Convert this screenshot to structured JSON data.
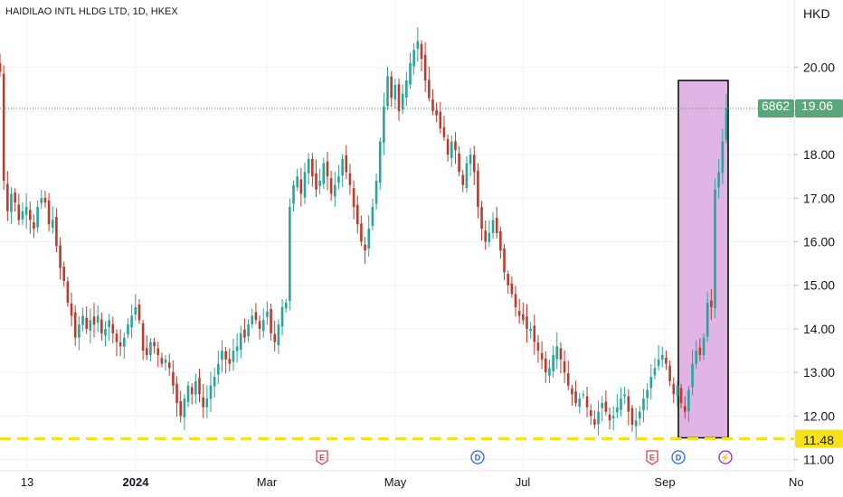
{
  "header": {
    "symbol_title": "HAIDILAO INTL HLDG LTD, 1D, HKEX"
  },
  "price_axis": {
    "currency": "HKD"
  },
  "last_price": {
    "volume_label": "6862",
    "price_label": "19.06",
    "value": 19.06
  },
  "support_line": {
    "label": "11.48",
    "value": 11.48,
    "color": "#f7e11a"
  },
  "colors": {
    "up": "#26a69a",
    "down": "#c0392b",
    "highlight_fill": "#e1b4e6",
    "badge": "#5aa67a"
  },
  "events": [
    {
      "letter": "E",
      "kind": "earnings",
      "date": "Mar-19",
      "color": "#e0434f"
    },
    {
      "letter": "D",
      "kind": "dividend",
      "date": "Jun-12",
      "color": "#2962ff"
    },
    {
      "letter": "E",
      "kind": "earnings",
      "date": "Aug-27",
      "color": "#e0434f"
    },
    {
      "letter": "D",
      "kind": "dividend",
      "date": "Sep-05",
      "color": "#2962ff"
    },
    {
      "letter": "⚡",
      "kind": "split",
      "date": "Sep-26",
      "color": "#9c27b0"
    }
  ],
  "chart_data": {
    "type": "candlestick",
    "title": "HAIDILAO INTL HLDG LTD, 1D, HKEX",
    "currency": "HKD",
    "ylim": [
      10.93,
      21.05
    ],
    "y_ticks": [
      "11.00",
      "12.00",
      "13.00",
      "14.00",
      "15.00",
      "16.00",
      "17.00",
      "18.00",
      "19.00",
      "20.00"
    ],
    "x_ticks": [
      "13",
      "2024",
      "Mar",
      "May",
      "Jul",
      "Sep",
      "No"
    ],
    "grid": true,
    "highlight_box": {
      "from": "Sep-05",
      "to": "Sep-27",
      "low": 11.5,
      "high": 19.7
    },
    "closes": [
      19.9,
      17.4,
      16.7,
      17.1,
      16.9,
      16.5,
      16.7,
      16.8,
      16.5,
      16.3,
      16.8,
      17.0,
      16.9,
      16.4,
      16.5,
      15.9,
      15.4,
      15.1,
      14.6,
      14.3,
      13.8,
      14.1,
      14.3,
      14.0,
      14.2,
      14.1,
      14.3,
      13.9,
      14.0,
      14.2,
      13.9,
      13.7,
      13.6,
      13.8,
      14.1,
      14.3,
      14.5,
      14.2,
      13.5,
      13.4,
      13.7,
      13.6,
      13.4,
      13.2,
      13.3,
      13.1,
      12.7,
      12.3,
      12.0,
      12.4,
      12.7,
      12.5,
      12.8,
      12.5,
      12.2,
      12.4,
      12.7,
      12.9,
      13.2,
      13.5,
      13.3,
      13.2,
      13.5,
      13.6,
      13.9,
      13.8,
      14.1,
      14.3,
      14.2,
      14.0,
      14.2,
      14.4,
      13.9,
      13.7,
      14.1,
      14.5,
      14.6,
      16.8,
      17.3,
      17.5,
      17.1,
      17.6,
      17.9,
      17.5,
      17.2,
      17.4,
      17.8,
      17.5,
      17.1,
      17.3,
      17.5,
      17.9,
      17.6,
      17.3,
      16.8,
      16.4,
      16.0,
      15.8,
      16.3,
      16.8,
      17.4,
      18.3,
      19.1,
      19.8,
      19.3,
      19.6,
      19.0,
      19.4,
      19.7,
      20.1,
      20.4,
      20.6,
      20.2,
      19.7,
      19.3,
      19.0,
      18.9,
      18.6,
      18.4,
      18.0,
      18.3,
      18.1,
      17.6,
      17.3,
      17.8,
      18.0,
      17.6,
      16.8,
      16.3,
      16.0,
      16.2,
      16.5,
      16.2,
      15.8,
      15.3,
      15.0,
      14.8,
      14.5,
      14.3,
      14.2,
      14.0,
      14.0,
      13.7,
      13.5,
      13.3,
      13.0,
      13.1,
      13.4,
      13.6,
      13.3,
      13.0,
      12.7,
      12.5,
      12.3,
      12.4,
      12.5,
      12.2,
      12.0,
      11.8,
      12.1,
      12.3,
      12.1,
      11.9,
      12.0,
      12.2,
      12.4,
      12.5,
      12.1,
      11.8,
      11.9,
      12.1,
      12.4,
      12.6,
      12.9,
      13.1,
      13.3,
      13.4,
      13.2,
      12.8,
      12.5,
      12.7,
      12.3,
      12.1,
      12.6,
      13.2,
      13.5,
      13.4,
      13.8,
      14.6,
      14.5,
      17.2,
      17.6,
      18.3,
      19.06
    ]
  }
}
